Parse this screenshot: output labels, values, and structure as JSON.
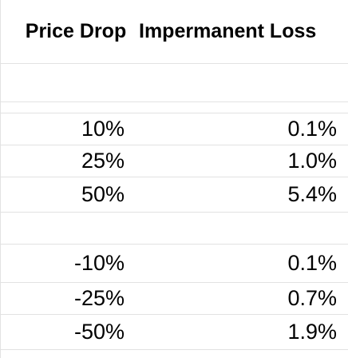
{
  "sheet": {
    "headers": [
      "Price Drop",
      "Impermanent Loss"
    ],
    "rows": [
      [
        "",
        ""
      ],
      [
        "",
        ""
      ],
      [
        "10%",
        "0.1%"
      ],
      [
        "25%",
        "1.0%"
      ],
      [
        "50%",
        "5.4%"
      ],
      [
        "",
        ""
      ],
      [
        "-10%",
        "0.1%"
      ],
      [
        "-25%",
        "0.7%"
      ],
      [
        "-50%",
        "1.9%"
      ]
    ]
  }
}
